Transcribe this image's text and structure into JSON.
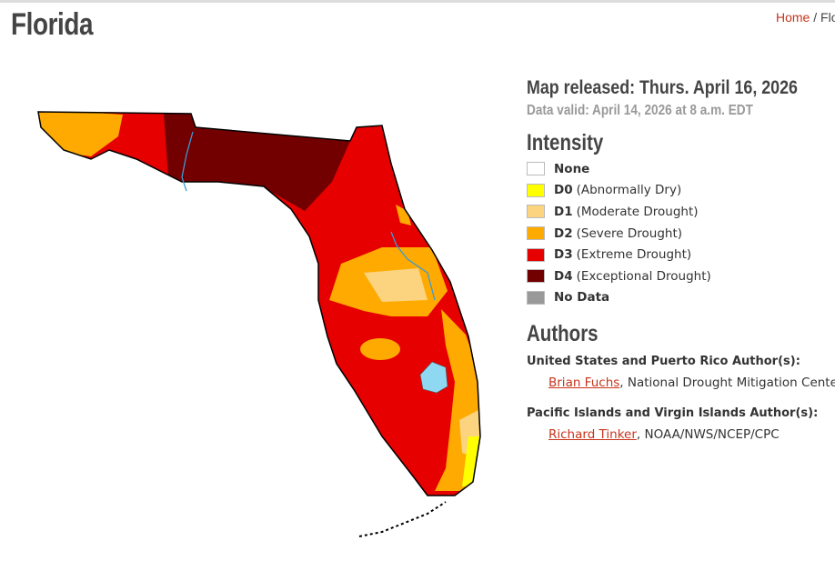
{
  "header": {
    "title": "Florida",
    "breadcrumb": [
      "Home",
      "Florida"
    ]
  },
  "map": {
    "name": "Florida drought map",
    "colors": {
      "D0": "#ffff00",
      "D1": "#fcd37f",
      "D2": "#ffaa00",
      "D3": "#e60000",
      "D4": "#730000",
      "water": "#8ed8f2",
      "river": "#3a9ad9"
    }
  },
  "info": {
    "released": "Map released: Thurs. April 16, 2026",
    "valid": "Data valid: April 14, 2026 at 8 a.m. EDT"
  },
  "intensity": {
    "title": "Intensity",
    "items": [
      {
        "code": "None",
        "desc": "",
        "color": "#ffffff"
      },
      {
        "code": "D0",
        "desc": "(Abnormally Dry)",
        "color": "#ffff00"
      },
      {
        "code": "D1",
        "desc": "(Moderate Drought)",
        "color": "#fcd37f"
      },
      {
        "code": "D2",
        "desc": "(Severe Drought)",
        "color": "#ffaa00"
      },
      {
        "code": "D3",
        "desc": "(Extreme Drought)",
        "color": "#e60000"
      },
      {
        "code": "D4",
        "desc": "(Exceptional Drought)",
        "color": "#730000"
      },
      {
        "code": "No Data",
        "desc": "",
        "color": "#999999"
      }
    ]
  },
  "authors": {
    "title": "Authors",
    "groups": [
      {
        "heading": "United States and Puerto Rico Author(s):",
        "name": "Brian Fuchs",
        "org": ", National Drought Mitigation Center"
      },
      {
        "heading": "Pacific Islands and Virgin Islands Author(s):",
        "name": "Richard Tinker",
        "org": ", NOAA/NWS/NCEP/CPC"
      }
    ]
  }
}
